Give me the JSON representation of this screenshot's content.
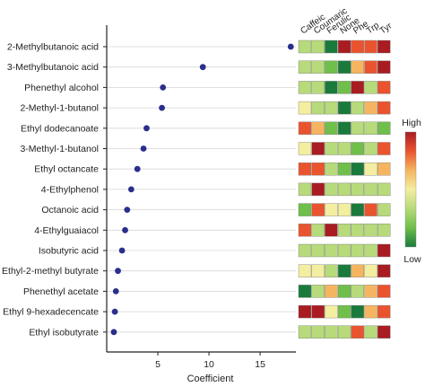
{
  "chart_data": {
    "type": "scatter",
    "xlabel": "Coefficient",
    "xlim": [
      0,
      18.5
    ],
    "xticks": [
      5,
      10,
      15
    ],
    "grid": "horizontal",
    "compounds": [
      "2-Methylbutanoic acid",
      "3-Methylbutanoic acid",
      "Phenethyl alcohol",
      "2-Methyl-1-butanol",
      "Ethyl dodecanoate",
      "3-Methyl-1-butanol",
      "Ethyl octancate",
      "4-Ethylphenol",
      "Octanoic acid",
      "4-Ethylguaiacol",
      "Isobutyric acid",
      "Ethyl-2-methyl butyrate",
      "Phenethyl acetate",
      "Ethyl 9-hexadecencate",
      "Ethyl isobutyrate"
    ],
    "values": [
      18.0,
      9.4,
      5.5,
      5.4,
      3.9,
      3.6,
      3.0,
      2.4,
      2.0,
      1.8,
      1.5,
      1.1,
      0.9,
      0.8,
      0.7
    ],
    "point_color": "#2a2f8c",
    "heatmap": {
      "columns": [
        "Caffeic",
        "Coumaric",
        "Ferulic",
        "None",
        "Phe",
        "Trp",
        "Tyr"
      ],
      "scale": [
        "#1a7a3c",
        "#6fbf4a",
        "#b7da7a",
        "#f3eea0",
        "#f5b560",
        "#e9542f",
        "#a81c22"
      ],
      "legend_high": "High",
      "legend_low": "Low",
      "levels": [
        [
          2,
          2,
          0,
          6,
          5,
          5,
          6
        ],
        [
          2,
          2,
          1,
          0,
          4,
          5,
          6
        ],
        [
          2,
          2,
          0,
          1,
          6,
          2,
          5
        ],
        [
          3,
          2,
          2,
          0,
          2,
          4,
          5
        ],
        [
          5,
          4,
          1,
          0,
          2,
          2,
          1
        ],
        [
          3,
          6,
          2,
          2,
          1,
          2,
          5
        ],
        [
          5,
          5,
          2,
          1,
          0,
          3,
          4
        ],
        [
          2,
          6,
          2,
          2,
          2,
          2,
          2
        ],
        [
          1,
          5,
          3,
          3,
          0,
          5,
          2
        ],
        [
          5,
          2,
          6,
          2,
          2,
          2,
          2
        ],
        [
          2,
          2,
          2,
          2,
          2,
          2,
          6
        ],
        [
          3,
          3,
          2,
          0,
          4,
          3,
          6
        ],
        [
          0,
          2,
          4,
          1,
          2,
          4,
          5
        ],
        [
          6,
          6,
          3,
          1,
          0,
          4,
          5
        ],
        [
          2,
          2,
          2,
          2,
          5,
          2,
          6
        ]
      ]
    }
  }
}
